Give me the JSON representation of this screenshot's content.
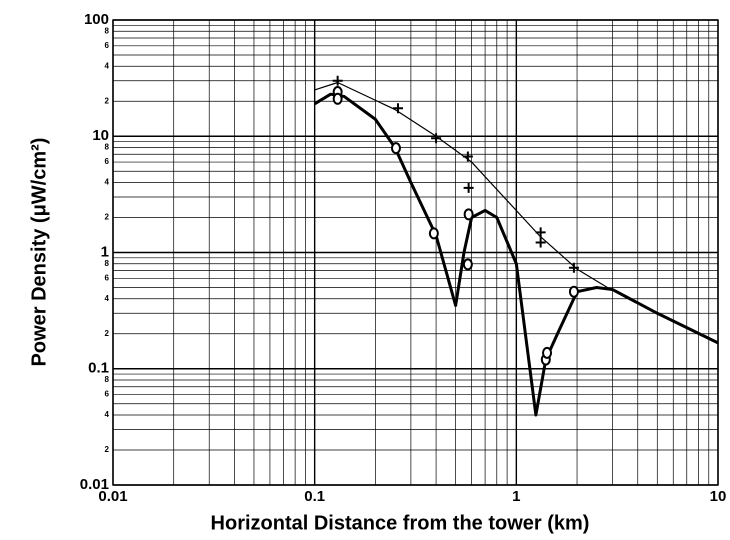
{
  "chart_data": {
    "type": "line",
    "xlabel": "Horizontal  Distance from  the tower (km)",
    "ylabel": "Power Density  (μW/cm²)",
    "log_x": true,
    "log_y": true,
    "grid": true,
    "xlim": [
      0.01,
      10
    ],
    "ylim": [
      0.01,
      100
    ],
    "xticks": [
      0.01,
      0.1,
      1,
      10
    ],
    "yticks": [
      0.01,
      0.1,
      1,
      10,
      100
    ],
    "xminor": [
      0.02,
      0.03,
      0.04,
      0.05,
      0.06,
      0.07,
      0.08,
      0.09,
      0.2,
      0.3,
      0.4,
      0.5,
      0.6,
      0.7,
      0.8,
      0.9,
      2,
      3,
      4,
      5,
      6,
      7,
      8,
      9
    ],
    "yminor": [
      0.02,
      0.03,
      0.04,
      0.05,
      0.06,
      0.07,
      0.08,
      0.09,
      0.2,
      0.3,
      0.4,
      0.5,
      0.6,
      0.7,
      0.8,
      0.9,
      2,
      3,
      4,
      5,
      6,
      7,
      8,
      9,
      20,
      30,
      40,
      50,
      60,
      70,
      80,
      90
    ],
    "yminor_labels": [
      {
        "value": 80,
        "label": "8"
      },
      {
        "value": 60,
        "label": "6"
      },
      {
        "value": 40,
        "label": "4"
      },
      {
        "value": 20,
        "label": "2"
      },
      {
        "value": 8,
        "label": "8"
      },
      {
        "value": 6,
        "label": "6"
      },
      {
        "value": 4,
        "label": "4"
      },
      {
        "value": 2,
        "label": "2"
      },
      {
        "value": 0.8,
        "label": "8"
      },
      {
        "value": 0.6,
        "label": "6"
      },
      {
        "value": 0.4,
        "label": "4"
      },
      {
        "value": 0.2,
        "label": "2"
      },
      {
        "value": 0.08,
        "label": "8"
      },
      {
        "value": 0.06,
        "label": "6"
      },
      {
        "value": 0.04,
        "label": "4"
      },
      {
        "value": 0.02,
        "label": "2"
      }
    ],
    "series": [
      {
        "style": "thin",
        "color": "#000000",
        "x": [
          0.1,
          0.13,
          0.25,
          0.4,
          0.6,
          1.3,
          2,
          3
        ],
        "values": [
          25,
          29,
          17,
          10,
          6,
          1.4,
          0.72,
          0.47
        ]
      },
      {
        "style": "thick",
        "color": "#000000",
        "x": [
          0.1,
          0.12,
          0.14,
          0.2,
          0.25,
          0.3,
          0.4,
          0.5,
          0.55,
          0.6,
          0.7,
          0.8,
          1,
          1.25,
          1.4,
          1.6,
          2,
          2.5,
          3,
          5,
          10
        ],
        "values": [
          19,
          23,
          22,
          14,
          8,
          4,
          1.4,
          0.35,
          1,
          2,
          2.3,
          2,
          0.8,
          0.04,
          0.12,
          0.2,
          0.46,
          0.5,
          0.48,
          0.3,
          0.167
        ]
      },
      {
        "style": "plus",
        "color": "#000000",
        "x": [
          0.13,
          0.259,
          0.4,
          0.575,
          0.58,
          1.32,
          1.32,
          1.93
        ],
        "values": [
          30,
          17.4,
          9.6,
          6.7,
          3.6,
          1.49,
          1.22,
          0.74
        ]
      },
      {
        "style": "circle",
        "color": "#000000",
        "x": [
          0.13,
          0.13,
          0.253,
          0.39,
          0.575,
          0.58,
          1.4,
          1.42,
          1.93
        ],
        "values": [
          24,
          21,
          7.9,
          1.46,
          0.79,
          2.13,
          0.12,
          0.137,
          0.46
        ]
      }
    ]
  }
}
